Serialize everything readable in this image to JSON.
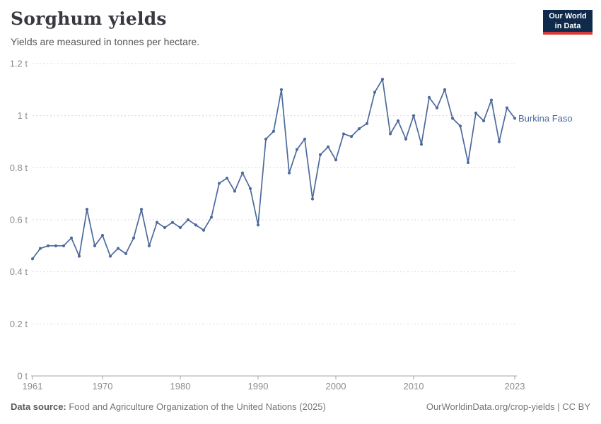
{
  "header": {
    "title": "Sorghum yields",
    "subtitle": "Yields are measured in tonnes per hectare.",
    "logo": {
      "line1": "Our World",
      "line2": "in Data"
    }
  },
  "footer": {
    "source_label": "Data source:",
    "source_text": " Food and Agriculture Organization of the United Nations (2025)",
    "link_text": "OurWorldinData.org/crop-yields | CC BY"
  },
  "colors": {
    "line": "#4C6A9C",
    "series_label": "#4C6A9C",
    "grid": "#D9D9D9",
    "axis": "#A6A6A6",
    "tick_text": "#8C8C8C",
    "title": "#38383F",
    "subtitle": "#56565B",
    "footer": "#757575",
    "footer_bold": "#5B5B5B",
    "logo_bg": "#102A4C",
    "logo_accent": "#D93A34"
  },
  "chart_data": {
    "type": "line",
    "title": "Sorghum yields",
    "ylabel": "tonnes per hectare",
    "xlabel": "",
    "xlim": [
      1961,
      2023
    ],
    "ylim": [
      0,
      1.2
    ],
    "grid": "horizontal-dashed",
    "legend_position": "line-end-label",
    "x": [
      1961,
      1962,
      1963,
      1964,
      1965,
      1966,
      1967,
      1968,
      1969,
      1970,
      1971,
      1972,
      1973,
      1974,
      1975,
      1976,
      1977,
      1978,
      1979,
      1980,
      1981,
      1982,
      1983,
      1984,
      1985,
      1986,
      1987,
      1988,
      1989,
      1990,
      1991,
      1992,
      1993,
      1994,
      1995,
      1996,
      1997,
      1998,
      1999,
      2000,
      2001,
      2002,
      2003,
      2004,
      2005,
      2006,
      2007,
      2008,
      2009,
      2010,
      2011,
      2012,
      2013,
      2014,
      2015,
      2016,
      2017,
      2018,
      2019,
      2020,
      2021,
      2022,
      2023
    ],
    "series": [
      {
        "name": "Burkina Faso",
        "values": [
          0.45,
          0.49,
          0.5,
          0.5,
          0.5,
          0.53,
          0.46,
          0.64,
          0.5,
          0.54,
          0.46,
          0.49,
          0.47,
          0.53,
          0.64,
          0.5,
          0.59,
          0.57,
          0.59,
          0.57,
          0.6,
          0.58,
          0.56,
          0.61,
          0.74,
          0.76,
          0.71,
          0.78,
          0.72,
          0.58,
          0.91,
          0.94,
          1.1,
          0.78,
          0.87,
          0.91,
          0.68,
          0.85,
          0.88,
          0.83,
          0.93,
          0.92,
          0.95,
          0.97,
          1.09,
          1.14,
          0.93,
          0.98,
          0.91,
          1.0,
          0.89,
          1.07,
          1.03,
          1.1,
          0.99,
          0.96,
          0.82,
          1.01,
          0.98,
          1.06,
          0.9,
          1.03,
          0.99
        ]
      }
    ],
    "y_ticks": [
      {
        "value": 0,
        "label": "0 t"
      },
      {
        "value": 0.2,
        "label": "0.2 t"
      },
      {
        "value": 0.4,
        "label": "0.4 t"
      },
      {
        "value": 0.6,
        "label": "0.6 t"
      },
      {
        "value": 0.8,
        "label": "0.8 t"
      },
      {
        "value": 1,
        "label": "1 t"
      },
      {
        "value": 1.2,
        "label": "1.2 t"
      }
    ],
    "x_ticks": [
      {
        "value": 1961,
        "label": "1961"
      },
      {
        "value": 1970,
        "label": "1970"
      },
      {
        "value": 1980,
        "label": "1980"
      },
      {
        "value": 1990,
        "label": "1990"
      },
      {
        "value": 2000,
        "label": "2000"
      },
      {
        "value": 2010,
        "label": "2010"
      },
      {
        "value": 2023,
        "label": "2023"
      }
    ]
  }
}
